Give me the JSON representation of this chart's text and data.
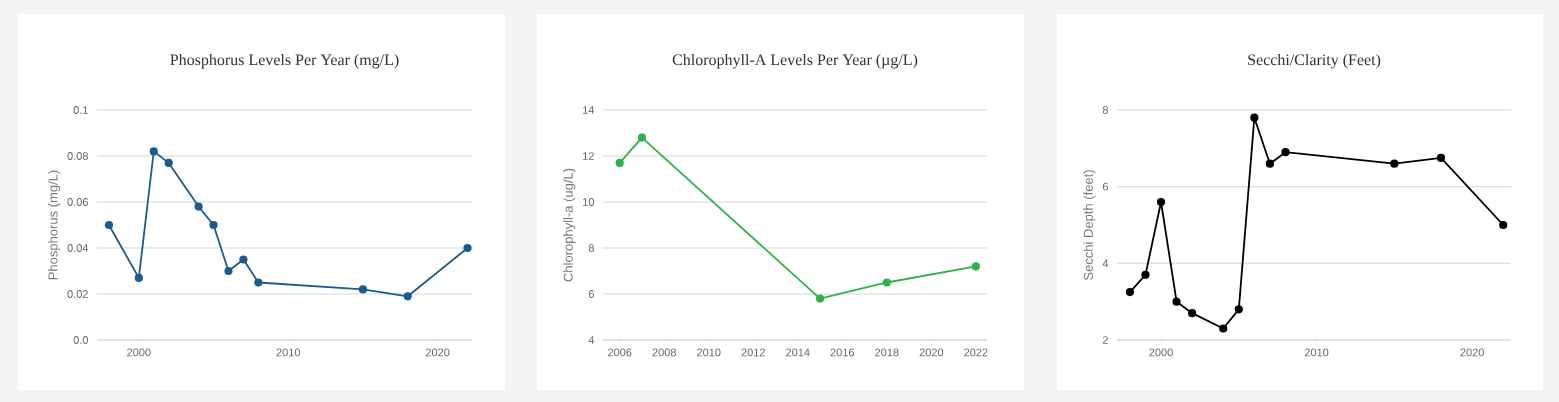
{
  "chart_data": [
    {
      "type": "line",
      "title": "Phosphorus Levels Per Year (mg/L)",
      "ylabel": "Phosphorus (mg/L)",
      "color": "#1f5b8a",
      "marker": "circle",
      "grid": "y",
      "x": [
        1998,
        2000,
        2001,
        2002,
        2004,
        2005,
        2006,
        2007,
        2008,
        2015,
        2018,
        2022
      ],
      "values": [
        0.05,
        0.027,
        0.082,
        0.077,
        0.058,
        0.05,
        0.03,
        0.035,
        0.025,
        0.022,
        0.019,
        0.04
      ],
      "xlim": [
        1997.2,
        2022.3
      ],
      "ylim": [
        0,
        0.1
      ],
      "xticks": [
        2000,
        2010,
        2020
      ],
      "yticks": [
        {
          "value": 0,
          "label": "0.0"
        },
        0.02,
        0.04,
        0.06,
        0.08,
        0.1
      ]
    },
    {
      "type": "line",
      "title": "Chlorophyll-A Levels Per Year (µg/L)",
      "ylabel": "Chlorophyll-a (ug/L)",
      "color": "#2db34a",
      "marker": "circle",
      "grid": "y",
      "x": [
        2006,
        2007,
        2015,
        2018,
        2022
      ],
      "values": [
        11.7,
        12.8,
        5.8,
        6.5,
        7.2
      ],
      "xlim": [
        2005.25,
        2022.5
      ],
      "ylim": [
        4,
        14
      ],
      "xticks": [
        2006,
        2008,
        2010,
        2012,
        2014,
        2016,
        2018,
        2020,
        2022
      ],
      "yticks": [
        4,
        6,
        8,
        10,
        12,
        14
      ]
    },
    {
      "type": "line",
      "title": "Secchi/Clarity (Feet)",
      "ylabel": "Secchi Depth (feet)",
      "color": "#000000",
      "marker": "circle",
      "grid": "y",
      "x": [
        1998,
        1999,
        2000,
        2001,
        2002,
        2004,
        2005,
        2006,
        2007,
        2008,
        2015,
        2018,
        2022
      ],
      "values": [
        3.25,
        3.7,
        5.6,
        3.0,
        2.7,
        2.3,
        2.8,
        7.8,
        6.6,
        6.9,
        6.6,
        6.75,
        5.0
      ],
      "xlim": [
        1997.17,
        2022.5
      ],
      "ylim": [
        2,
        8
      ],
      "xticks": [
        2000,
        2010,
        2020
      ],
      "yticks": [
        2,
        4,
        6,
        8
      ]
    }
  ]
}
